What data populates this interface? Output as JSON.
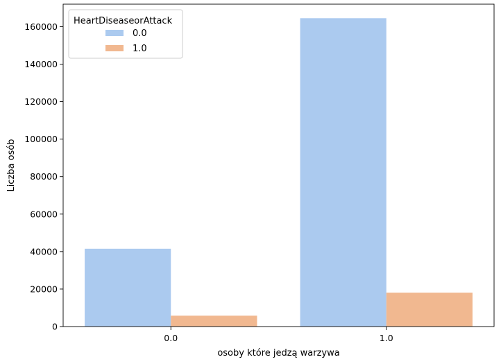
{
  "chart_data": {
    "type": "bar",
    "categories": [
      "0.0",
      "1.0"
    ],
    "series": [
      {
        "name": "0.0",
        "values": [
          41500,
          164500
        ],
        "color": "#abcaef"
      },
      {
        "name": "1.0",
        "values": [
          5800,
          18100
        ],
        "color": "#f1b890"
      }
    ],
    "xlabel": "osoby które jedzą warzywa",
    "ylabel": "Liczba osób",
    "ylim": [
      0,
      172000
    ],
    "yticks": [
      0,
      20000,
      40000,
      60000,
      80000,
      100000,
      120000,
      140000,
      160000
    ],
    "ytick_labels": [
      "0",
      "20000",
      "40000",
      "60000",
      "80000",
      "100000",
      "120000",
      "140000",
      "160000"
    ],
    "grid": false,
    "legend": {
      "title": "HeartDiseaseorAttack",
      "placement": "top-left",
      "entries": [
        "0.0",
        "1.0"
      ]
    }
  }
}
